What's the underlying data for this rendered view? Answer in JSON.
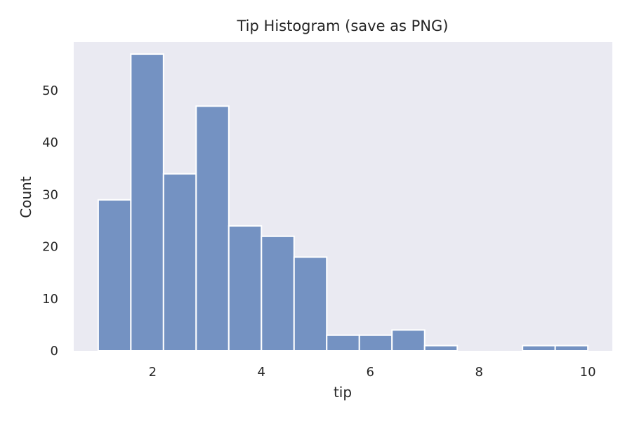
{
  "chart_data": {
    "type": "bar",
    "title": "Tip Histogram (save as PNG)",
    "xlabel": "tip",
    "ylabel": "Count",
    "bin_edges": [
      1.0,
      1.6,
      2.2,
      2.8,
      3.4,
      4.0,
      4.6,
      5.2,
      5.8,
      6.4,
      7.0,
      7.6,
      8.2,
      8.8,
      9.4,
      10.0
    ],
    "values": [
      29,
      57,
      34,
      47,
      24,
      22,
      18,
      3,
      3,
      4,
      1,
      0,
      0,
      1,
      1
    ],
    "xlim": [
      0.55,
      10.45
    ],
    "ylim": [
      0,
      59.3
    ],
    "x_ticks": [
      2,
      4,
      6,
      8,
      10
    ],
    "y_ticks": [
      0,
      10,
      20,
      30,
      40,
      50
    ],
    "grid": false,
    "bar_color": "#7492c2",
    "bar_edge_color": "#ffffff",
    "plot_background": "#eaeaf2"
  }
}
